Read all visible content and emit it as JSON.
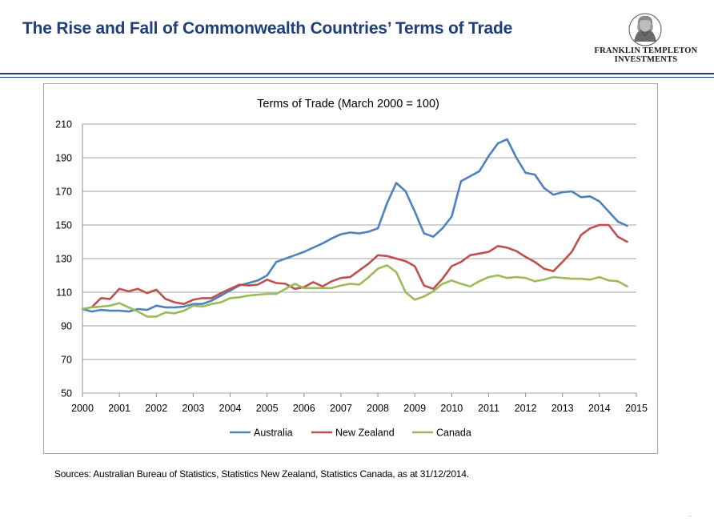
{
  "header": {
    "title": "The Rise and Fall of Commonwealth Countries’ Terms of Trade",
    "logo_line1": "FRANKLIN TEMPLETON",
    "logo_line2": "INVESTMENTS"
  },
  "footer": {
    "sources": "Sources: Australian Bureau of Statistics, Statistics New Zealand, Statistics Canada, as at 31/12/2014.",
    "dot": "."
  },
  "colors": {
    "title": "#1f3f7a",
    "australia": "#4f81bd",
    "new_zealand": "#c0504d",
    "canada": "#9bbb59",
    "grid": "#a6a6a6"
  },
  "chart_data": {
    "type": "line",
    "title": "Terms of Trade (March 2000 = 100)",
    "xlabel": "",
    "ylabel": "",
    "xlim": [
      2000,
      2015
    ],
    "ylim": [
      50,
      210
    ],
    "xticks": [
      2000,
      2001,
      2002,
      2003,
      2004,
      2005,
      2006,
      2007,
      2008,
      2009,
      2010,
      2011,
      2012,
      2013,
      2014,
      2015
    ],
    "yticks": [
      50,
      70,
      90,
      110,
      130,
      150,
      170,
      190,
      210
    ],
    "grid": true,
    "legend": "bottom",
    "x": [
      2000.0,
      2000.25,
      2000.5,
      2000.75,
      2001.0,
      2001.25,
      2001.5,
      2001.75,
      2002.0,
      2002.25,
      2002.5,
      2002.75,
      2003.0,
      2003.25,
      2003.5,
      2003.75,
      2004.0,
      2004.25,
      2004.5,
      2004.75,
      2005.0,
      2005.25,
      2005.5,
      2005.75,
      2006.0,
      2006.25,
      2006.5,
      2006.75,
      2007.0,
      2007.25,
      2007.5,
      2007.75,
      2008.0,
      2008.25,
      2008.5,
      2008.75,
      2009.0,
      2009.25,
      2009.5,
      2009.75,
      2010.0,
      2010.25,
      2010.5,
      2010.75,
      2011.0,
      2011.25,
      2011.5,
      2011.75,
      2012.0,
      2012.25,
      2012.5,
      2012.75,
      2013.0,
      2013.25,
      2013.5,
      2013.75,
      2014.0,
      2014.25,
      2014.5,
      2014.75
    ],
    "series": [
      {
        "name": "Australia",
        "color": "#4f81bd",
        "values": [
          100,
          98.5,
          99.5,
          99,
          99,
          98.5,
          100,
          99.5,
          102,
          101,
          101,
          101.5,
          103,
          103,
          105,
          108,
          111,
          114,
          115.5,
          117,
          120,
          128,
          130,
          132,
          134,
          136.5,
          139,
          142,
          144.5,
          145.5,
          145,
          146,
          148,
          163,
          175,
          170,
          158,
          145,
          143,
          148,
          155,
          176,
          179,
          182,
          191,
          198.5,
          201,
          190,
          181,
          180,
          172,
          168,
          169.5,
          170,
          166.5,
          167,
          164,
          158,
          152,
          149.5
        ]
      },
      {
        "name": "New Zealand",
        "color": "#c0504d",
        "values": [
          100,
          101,
          106.5,
          106,
          112,
          110.5,
          112,
          109.5,
          111.5,
          106,
          104,
          103,
          105.5,
          106.5,
          106.5,
          109.5,
          112,
          114.5,
          114,
          114.5,
          117.5,
          115.5,
          115,
          112,
          113,
          116,
          113.5,
          116.5,
          118.5,
          119,
          123,
          127,
          132,
          131.5,
          130,
          128.5,
          125.5,
          114,
          112,
          118,
          125.5,
          128,
          132,
          133,
          134,
          137.5,
          136.5,
          134.5,
          131,
          128,
          124,
          122.5,
          128,
          134,
          144,
          148,
          150,
          150,
          143,
          140
        ]
      },
      {
        "name": "Canada",
        "color": "#9bbb59",
        "values": [
          100,
          101,
          101.5,
          102,
          103.5,
          101,
          98.5,
          95.5,
          95.5,
          98,
          97.5,
          99,
          102,
          101.5,
          103,
          104,
          106.5,
          107,
          108,
          108.5,
          109,
          109,
          112,
          115,
          112.5,
          112.5,
          112.5,
          112.5,
          114,
          115,
          114.5,
          119,
          124,
          126,
          122,
          110,
          105.5,
          107.5,
          110.5,
          115,
          117,
          115,
          113.5,
          116.5,
          119,
          120,
          118.5,
          119,
          118.5,
          116.5,
          117.5,
          119,
          118.5,
          118,
          118,
          117.5,
          119,
          117,
          116.5,
          113.5
        ]
      }
    ]
  }
}
